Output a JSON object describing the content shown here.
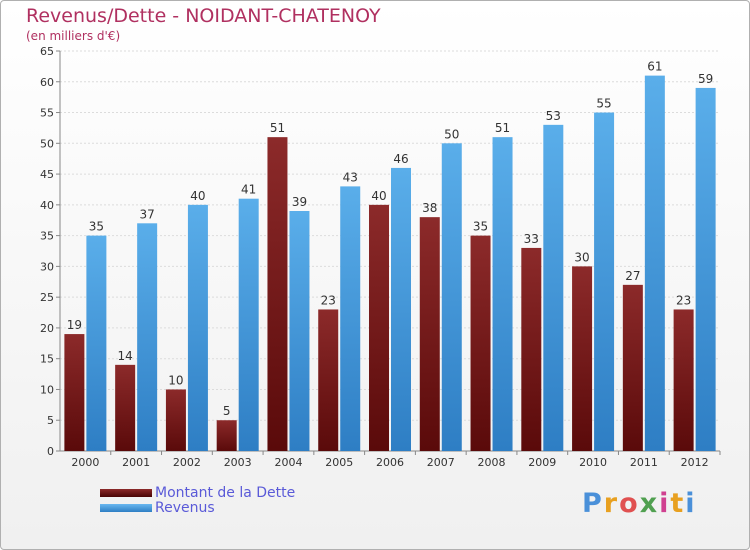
{
  "chart_data": {
    "type": "bar",
    "title": "Revenus/Dette - NOIDANT-CHATENOY",
    "subtitle": "(en milliers d'€)",
    "categories": [
      "2000",
      "2001",
      "2002",
      "2003",
      "2004",
      "2005",
      "2006",
      "2007",
      "2008",
      "2009",
      "2010",
      "2011",
      "2012"
    ],
    "series": [
      {
        "name": "Montant de la Dette",
        "color": "#7a1a1a",
        "values": [
          19,
          14,
          10,
          5,
          51,
          23,
          40,
          38,
          35,
          33,
          30,
          27,
          23
        ]
      },
      {
        "name": "Revenus",
        "color": "#4a9ee0",
        "values": [
          35,
          37,
          40,
          41,
          39,
          43,
          46,
          50,
          51,
          53,
          55,
          61,
          59
        ]
      }
    ],
    "ylim": [
      0,
      65
    ],
    "yticks": [
      0,
      5,
      10,
      15,
      20,
      25,
      30,
      35,
      40,
      45,
      50,
      55,
      60,
      65
    ],
    "grid": true,
    "legend_position": "bottom-left"
  },
  "logo": {
    "text": "Proxiti"
  }
}
